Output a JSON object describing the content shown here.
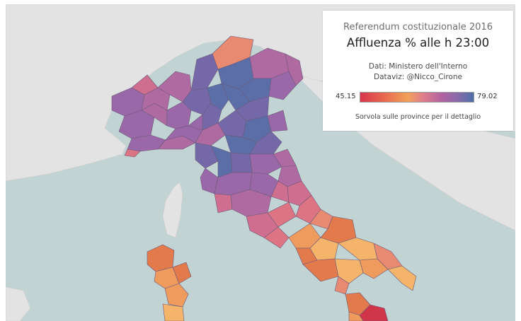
{
  "legend": {
    "subtitle": "Referendum costituzionale 2016",
    "title": "Affluenza % alle h 23:00",
    "source": "Dati: Ministero dell'Interno",
    "credit": "Dataviz: @Nicco_Cirone",
    "min_label": "45.15",
    "max_label": "79.02",
    "hint": "Sorvola sulle province per il dettaglio"
  },
  "colors": {
    "sea": "#c2d3d3",
    "foreign_land": "#e3e3e3",
    "low": "#d8364c",
    "mid": "#f1a15a",
    "high": "#4f6fa8",
    "border": "#6b5a7a"
  },
  "scale": {
    "min": 45.15,
    "max": 79.02
  }
}
